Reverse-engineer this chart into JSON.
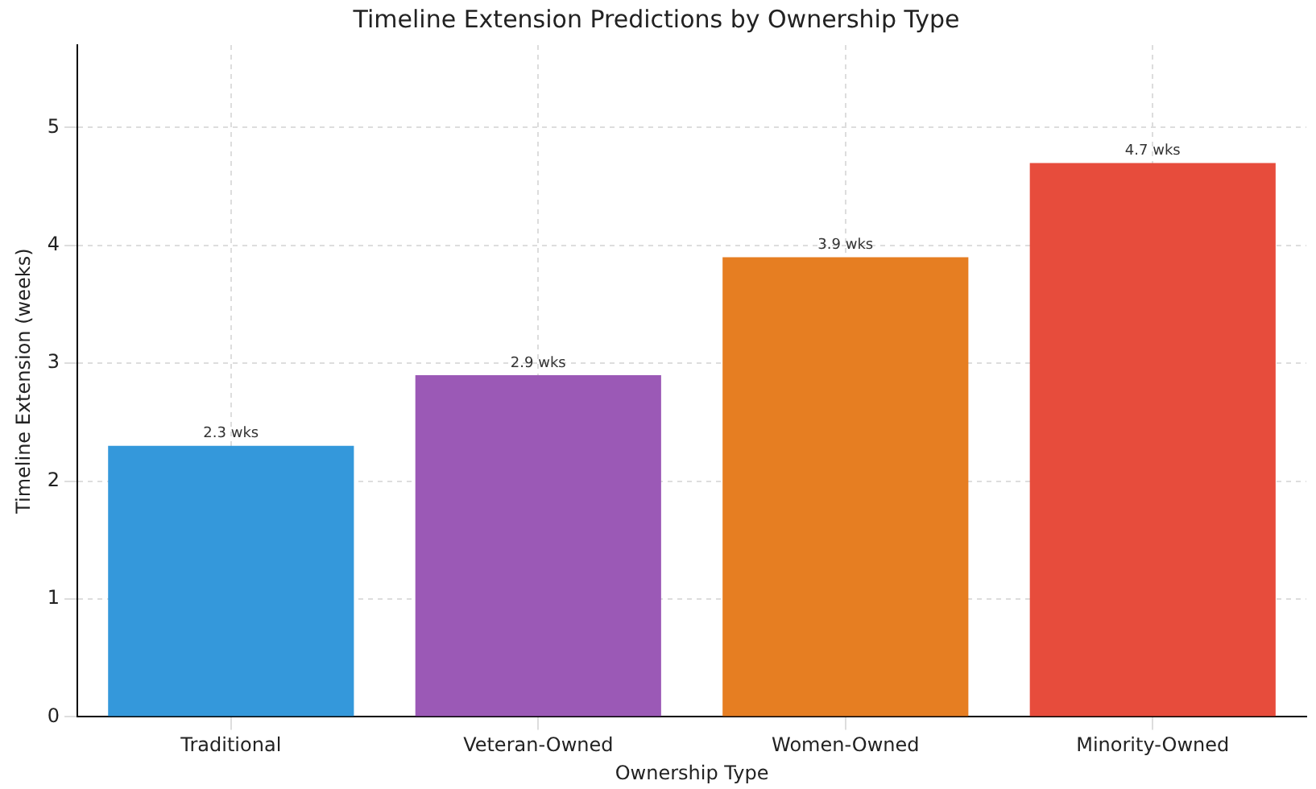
{
  "chart_data": {
    "type": "bar",
    "title": "Timeline Extension Predictions by Ownership Type",
    "xlabel": "Ownership Type",
    "ylabel": "Timeline Extension (weeks)",
    "categories": [
      "Traditional",
      "Veteran-Owned",
      "Women-Owned",
      "Minority-Owned"
    ],
    "values": [
      2.3,
      2.9,
      3.9,
      4.7
    ],
    "colors": [
      "#3498db",
      "#9b59b6",
      "#e67e22",
      "#e74c3c"
    ],
    "value_labels": [
      "2.3 wks",
      "2.9 wks",
      "3.9 wks",
      "4.7 wks"
    ],
    "ylim": [
      0,
      5.7
    ],
    "yticks": [
      0,
      1,
      2,
      3,
      4,
      5
    ],
    "grid": true
  }
}
